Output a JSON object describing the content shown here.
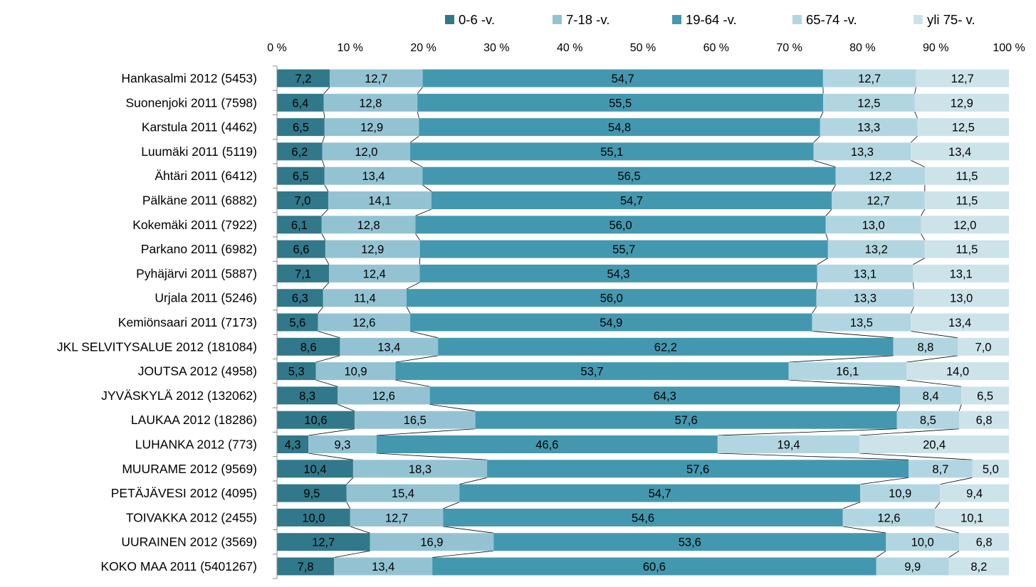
{
  "chart_data": {
    "type": "bar",
    "orientation": "horizontal",
    "stacked": "percent",
    "title": "",
    "xlabel": "",
    "ylabel": "",
    "xlim": [
      0,
      100
    ],
    "tick_labels": [
      "0 %",
      "10 %",
      "20 %",
      "30 %",
      "40 %",
      "50 %",
      "60 %",
      "70 %",
      "80 %",
      "90 %",
      "100 %"
    ],
    "legend_position": "top",
    "grid": false,
    "categories": [
      "Hankasalmi 2012 (5453)",
      "Suonenjoki 2011 (7598)",
      "Karstula 2011 (4462)",
      "Luumäki 2011 (5119)",
      "Ähtäri 2011 (6412)",
      "Pälkäne 2011 (6882)",
      "Kokemäki 2011 (7922)",
      "Parkano 2011 (6982)",
      "Pyhäjärvi 2011 (5887)",
      "Urjala 2011 (5246)",
      "Kemiönsaari 2011 (7173)",
      "JKL SELVITYSALUE 2012 (181084)",
      "JOUTSA 2012 (4958)",
      "JYVÄSKYLÄ 2012 (132062)",
      "LAUKAA 2012 (18286)",
      "LUHANKA 2012 (773)",
      "MUURAME 2012 (9569)",
      "PETÄJÄVESI 2012 (4095)",
      "TOIVAKKA 2012 (2455)",
      "UURAINEN 2012 (3569)",
      "KOKO MAA 2011 (5401267)"
    ],
    "series": [
      {
        "name": "0-6 -v.",
        "color": "#31788a",
        "values": [
          7.2,
          6.4,
          6.5,
          6.2,
          6.5,
          7.0,
          6.1,
          6.6,
          7.1,
          6.3,
          5.6,
          8.6,
          5.3,
          8.3,
          10.6,
          4.3,
          10.4,
          9.5,
          10.0,
          12.7,
          7.8
        ],
        "labels": [
          "7,2",
          "6,4",
          "6,5",
          "6,2",
          "6,5",
          "7,0",
          "6,1",
          "6,6",
          "7,1",
          "6,3",
          "5,6",
          "8,6",
          "5,3",
          "8,3",
          "10,6",
          "4,3",
          "10,4",
          "9,5",
          "10,0",
          "12,7",
          "7,8"
        ]
      },
      {
        "name": "7-18 -v.",
        "color": "#93c3d3",
        "values": [
          12.7,
          12.8,
          12.9,
          12.0,
          13.4,
          14.1,
          12.8,
          12.9,
          12.4,
          11.4,
          12.6,
          13.4,
          10.9,
          12.6,
          16.5,
          9.3,
          18.3,
          15.4,
          12.7,
          16.9,
          13.4
        ],
        "labels": [
          "12,7",
          "12,8",
          "12,9",
          "12,0",
          "13,4",
          "14,1",
          "12,8",
          "12,9",
          "12,4",
          "11,4",
          "12,6",
          "13,4",
          "10,9",
          "12,6",
          "16,5",
          "9,3",
          "18,3",
          "15,4",
          "12,7",
          "16,9",
          "13,4"
        ]
      },
      {
        "name": "19-64 -v.",
        "color": "#4398af",
        "values": [
          54.7,
          55.5,
          54.8,
          55.1,
          56.5,
          54.7,
          56.0,
          55.7,
          54.3,
          56.0,
          54.9,
          62.2,
          53.7,
          64.3,
          57.6,
          46.6,
          57.6,
          54.7,
          54.6,
          53.6,
          60.6
        ],
        "labels": [
          "54,7",
          "55,5",
          "54,8",
          "55,1",
          "56,5",
          "54,7",
          "56,0",
          "55,7",
          "54,3",
          "56,0",
          "54,9",
          "62,2",
          "53,7",
          "64,3",
          "57,6",
          "46,6",
          "57,6",
          "54,7",
          "54,6",
          "53,6",
          "60,6"
        ]
      },
      {
        "name": "65-74 -v.",
        "color": "#b2d6e1",
        "values": [
          12.7,
          12.5,
          13.3,
          13.3,
          12.2,
          12.7,
          13.0,
          13.2,
          13.1,
          13.3,
          13.5,
          8.8,
          16.1,
          8.4,
          8.5,
          19.4,
          8.7,
          10.9,
          12.6,
          10.0,
          9.9
        ],
        "labels": [
          "12,7",
          "12,5",
          "13,3",
          "13,3",
          "12,2",
          "12,7",
          "13,0",
          "13,2",
          "13,1",
          "13,3",
          "13,5",
          "8,8",
          "16,1",
          "8,4",
          "8,5",
          "19,4",
          "8,7",
          "10,9",
          "12,6",
          "10,0",
          "9,9"
        ]
      },
      {
        "name": "yli 75- v.",
        "color": "#cde3ea",
        "values": [
          12.7,
          12.9,
          12.5,
          13.4,
          11.5,
          11.5,
          12.0,
          11.5,
          13.1,
          13.0,
          13.4,
          7.0,
          14.0,
          6.5,
          6.8,
          20.4,
          5.0,
          9.4,
          10.1,
          6.8,
          8.2
        ],
        "labels": [
          "12,7",
          "12,9",
          "12,5",
          "13,4",
          "11,5",
          "11,5",
          "12,0",
          "11,5",
          "13,1",
          "13,0",
          "13,4",
          "7,0",
          "14,0",
          "6,5",
          "6,8",
          "20,4",
          "5,0",
          "9,4",
          "10,1",
          "6,8",
          "8,2"
        ]
      }
    ]
  }
}
